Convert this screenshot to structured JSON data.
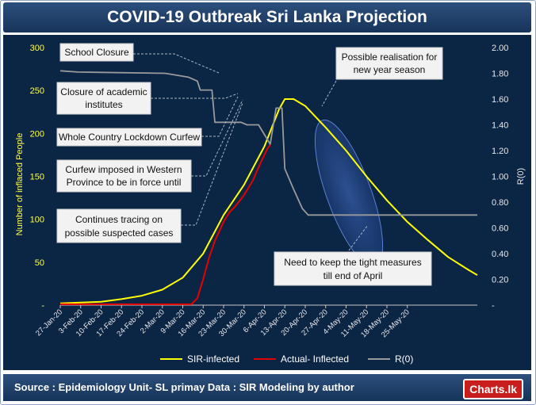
{
  "header": {
    "title": "COVID-19  Outbreak Sri Lanka Projection"
  },
  "footer": {
    "source": "Source : Epidemiology Unit- SL primay Data : SIR Modeling by author",
    "logo": "Charts.lk"
  },
  "colors": {
    "sir": "#ffff00",
    "actual": "#e60000",
    "r0": "#9a9a9a"
  },
  "chart_data": {
    "type": "line",
    "ylabel": "Number of inflaced People",
    "y2label": "R(0)",
    "ylim": [
      0,
      300
    ],
    "y2lim": [
      0,
      2.0
    ],
    "yticks": [
      "-",
      "50",
      "100",
      "150",
      "200",
      "250",
      "300"
    ],
    "y2ticks": [
      "-",
      "0.20",
      "0.40",
      "0.60",
      "0.80",
      "1.00",
      "1.20",
      "1.40",
      "1.60",
      "1.80",
      "2.00"
    ],
    "xticks": [
      "27-Jan-20",
      "3-Feb-20",
      "10-Feb-20",
      "17-Feb-20",
      "24-Feb-20",
      "2-Mar-20",
      "9-Mar-20",
      "16-Mar-20",
      "23-Mar-20",
      "30-Mar-20",
      "6-Apr-20",
      "13-Apr-20",
      "20-Apr-20",
      "27-Apr-20",
      "4-May-20",
      "11-May-20",
      "18-May-20",
      "25-May-20"
    ],
    "series": [
      {
        "name": "SIR-infected",
        "axis": "left",
        "points": [
          [
            0,
            2
          ],
          [
            7,
            3
          ],
          [
            14,
            4
          ],
          [
            21,
            7
          ],
          [
            28,
            11
          ],
          [
            35,
            18
          ],
          [
            42,
            32
          ],
          [
            49,
            60
          ],
          [
            56,
            105
          ],
          [
            63,
            140
          ],
          [
            70,
            185
          ],
          [
            75,
            228
          ],
          [
            77,
            240
          ],
          [
            80,
            240
          ],
          [
            84,
            232
          ],
          [
            91,
            207
          ],
          [
            98,
            180
          ],
          [
            105,
            150
          ],
          [
            112,
            122
          ],
          [
            119,
            97
          ],
          [
            126,
            76
          ],
          [
            133,
            56
          ],
          [
            140,
            41
          ],
          [
            143,
            35
          ]
        ]
      },
      {
        "name": "Actual- Inflected",
        "axis": "left",
        "points": [
          [
            0,
            1
          ],
          [
            42,
            1
          ],
          [
            45,
            1
          ],
          [
            47,
            8
          ],
          [
            49,
            30
          ],
          [
            51,
            55
          ],
          [
            53,
            75
          ],
          [
            56,
            97
          ],
          [
            58,
            108
          ],
          [
            60,
            115
          ],
          [
            63,
            128
          ],
          [
            66,
            145
          ],
          [
            69,
            168
          ],
          [
            71,
            182
          ],
          [
            72,
            187
          ]
        ]
      },
      {
        "name": "R(0)",
        "axis": "right",
        "points": [
          [
            0,
            1.82
          ],
          [
            6,
            1.81
          ],
          [
            36,
            1.8
          ],
          [
            44,
            1.77
          ],
          [
            47,
            1.74
          ],
          [
            48,
            1.67
          ],
          [
            52,
            1.67
          ],
          [
            53,
            1.42
          ],
          [
            62,
            1.42
          ],
          [
            64,
            1.4
          ],
          [
            68,
            1.4
          ],
          [
            72,
            1.25
          ],
          [
            74,
            1.53
          ],
          [
            76,
            1.53
          ],
          [
            77,
            1.06
          ],
          [
            80,
            0.9
          ],
          [
            83,
            0.75
          ],
          [
            85,
            0.7
          ],
          [
            143,
            0.7
          ]
        ]
      }
    ],
    "annotations": [
      "School Closure",
      "Closure of academic institutes",
      "Whole Country Lockdown Curfew",
      "Curfew imposed in Western Province to be in force until",
      "Continues tracing on possible suspected cases",
      "Possible realisation  for new year season",
      "Need to keep the tight measures till end of April"
    ]
  },
  "chart_text": {
    "ann_school": "School Closure",
    "ann_academic_1": "Closure of academic",
    "ann_academic_2": "institutes",
    "ann_lockdown": "Whole Country Lockdown Curfew",
    "ann_western_1": "Curfew imposed in Western",
    "ann_western_2": "Province to be in force until",
    "ann_tracing_1": "Continues tracing on",
    "ann_tracing_2": "possible suspected cases",
    "ann_newyear_1": "Possible realisation  for",
    "ann_newyear_2": "new year season",
    "ann_measures_1": "Need to keep the tight measures",
    "ann_measures_2": "till end of April"
  }
}
